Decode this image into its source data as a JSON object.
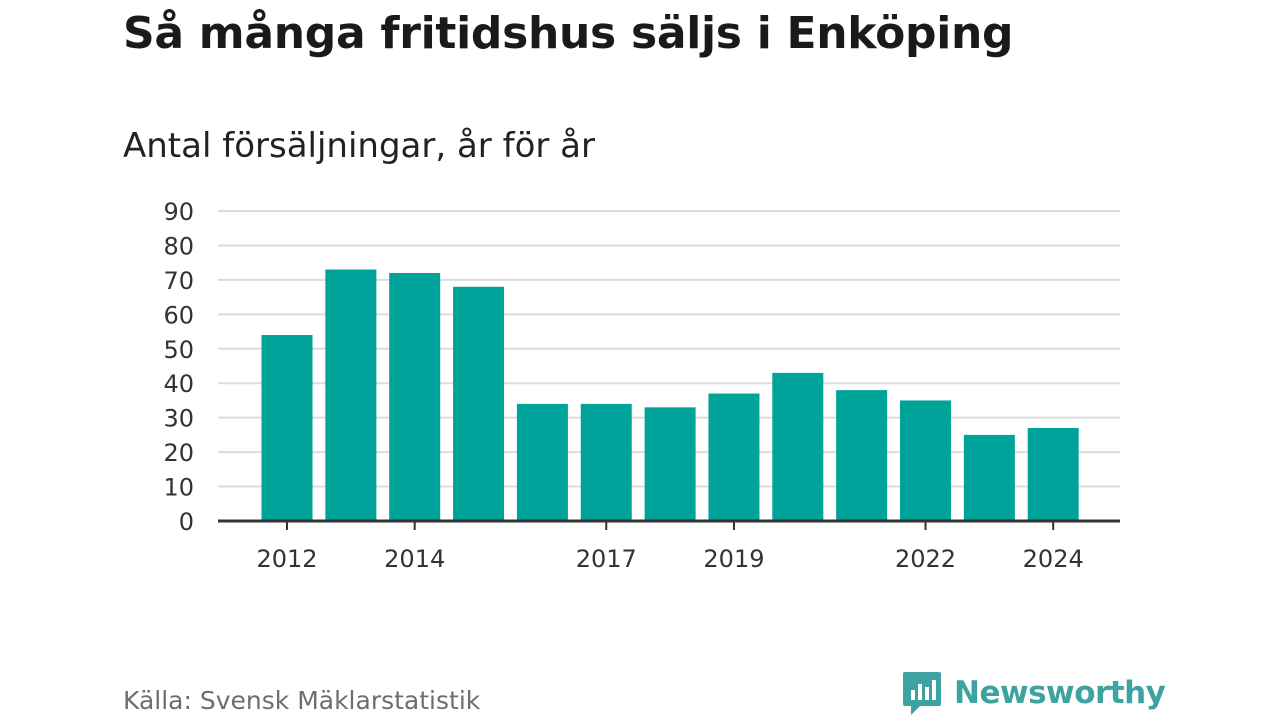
{
  "title": "Så många fritidshus säljs i Enköping",
  "subtitle": "Antal försäljningar, år för år",
  "source": "Källa: Svensk Mäklarstatistik",
  "logo": {
    "text": "Newsworthy",
    "icon": "bar-chart-speech-bubble-icon"
  },
  "colors": {
    "bar": "#00a39a",
    "brand": "#3da3a0",
    "grid": "#dcdcdc",
    "axis": "#333333"
  },
  "chart_data": {
    "type": "bar",
    "categories": [
      2012,
      2013,
      2014,
      2015,
      2016,
      2017,
      2018,
      2019,
      2020,
      2021,
      2022,
      2023,
      2024
    ],
    "values": [
      54,
      73,
      72,
      68,
      34,
      34,
      33,
      37,
      43,
      38,
      35,
      25,
      27
    ],
    "x_tick_labels": [
      "2012",
      "2014",
      "2017",
      "2019",
      "2022",
      "2024"
    ],
    "y_ticks": [
      0,
      10,
      20,
      30,
      40,
      50,
      60,
      70,
      80,
      90
    ],
    "ylim": [
      0,
      90
    ],
    "grid": true,
    "legend": false
  }
}
